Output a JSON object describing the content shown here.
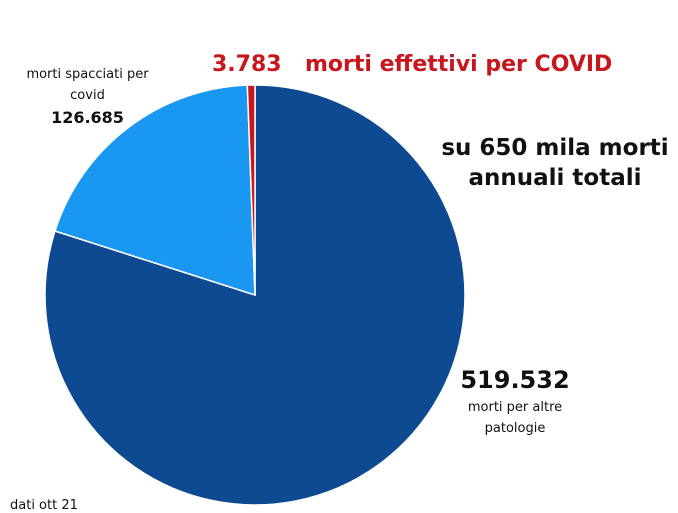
{
  "chart_data": {
    "type": "pie",
    "categories": [
      "morti per altre patologie",
      "morti spacciati per covid",
      "morti effettivi per COVID"
    ],
    "values": [
      519532,
      126685,
      3783
    ],
    "value_labels": [
      "519.532",
      "126.685",
      "3.783"
    ],
    "colors": [
      "#0e4a92",
      "#1a97f0",
      "#c8161d"
    ],
    "annotation": "su 650 mila morti annuali totali",
    "note": "dati ott 21"
  }
}
